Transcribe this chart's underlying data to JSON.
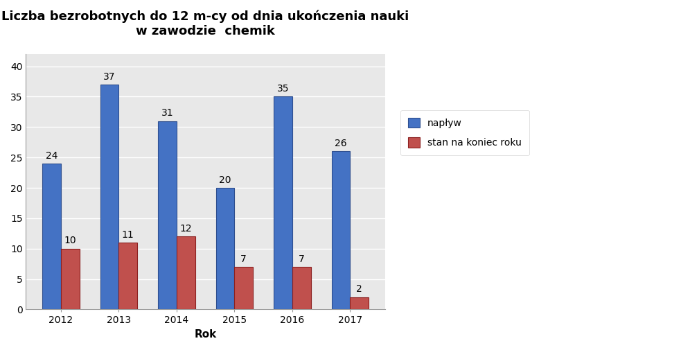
{
  "title_line1": "Liczba bezrobotnych do 12 m-cy od dnia ukończenia nauki",
  "title_line2": "w zawodzie  chemik",
  "xlabel": "Rok",
  "years": [
    "2012",
    "2013",
    "2014",
    "2015",
    "2016",
    "2017"
  ],
  "napływ": [
    24,
    37,
    31,
    20,
    35,
    26
  ],
  "stan": [
    10,
    11,
    12,
    7,
    7,
    2
  ],
  "color_napływ": "#4472C4",
  "color_stan": "#C0504D",
  "color_napływ_edge": "#2E4E8E",
  "color_stan_edge": "#8B2020",
  "ylim": [
    0,
    42
  ],
  "yticks": [
    0,
    5,
    10,
    15,
    20,
    25,
    30,
    35,
    40
  ],
  "legend_napływ": "napływ",
  "legend_stan": "stan na koniec roku",
  "bar_width": 0.32,
  "fig_bg_color": "#FFFFFF",
  "plot_bg_color": "#E8E8E8",
  "title_fontsize": 13,
  "label_fontsize": 10,
  "tick_fontsize": 10,
  "xlabel_fontsize": 11
}
